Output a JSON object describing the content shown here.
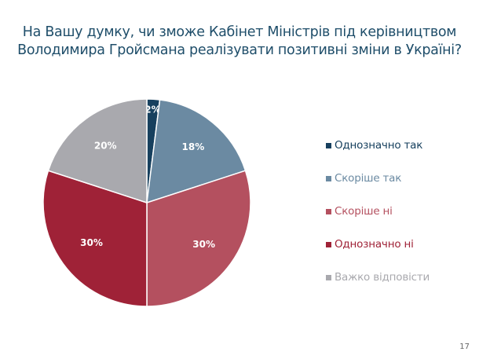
{
  "title": [
    "На Вашу думку, чи зможе Кабінет Міністрів під керівництвом",
    "Володимира Гройсмана реалізувати позитивні зміни в Україні?"
  ],
  "page_number": "17",
  "chart_data": {
    "type": "pie",
    "title": "На Вашу думку, чи зможе Кабінет Міністрів під керівництвом Володимира Гройсмана реалізувати позитивні зміни в Україні?",
    "categories": [
      "Однозначно так",
      "Скоріше так",
      "Скоріше ні",
      "Однозначно ні",
      "Важко відповісти"
    ],
    "values": [
      2,
      18,
      30,
      30,
      20
    ],
    "labels": [
      "2%",
      "18%",
      "30%",
      "30%",
      "20%"
    ],
    "colors": [
      "#17405e",
      "#6b8aa2",
      "#b4505f",
      "#9f2237",
      "#a9a9ae"
    ],
    "legend_position": "right"
  }
}
